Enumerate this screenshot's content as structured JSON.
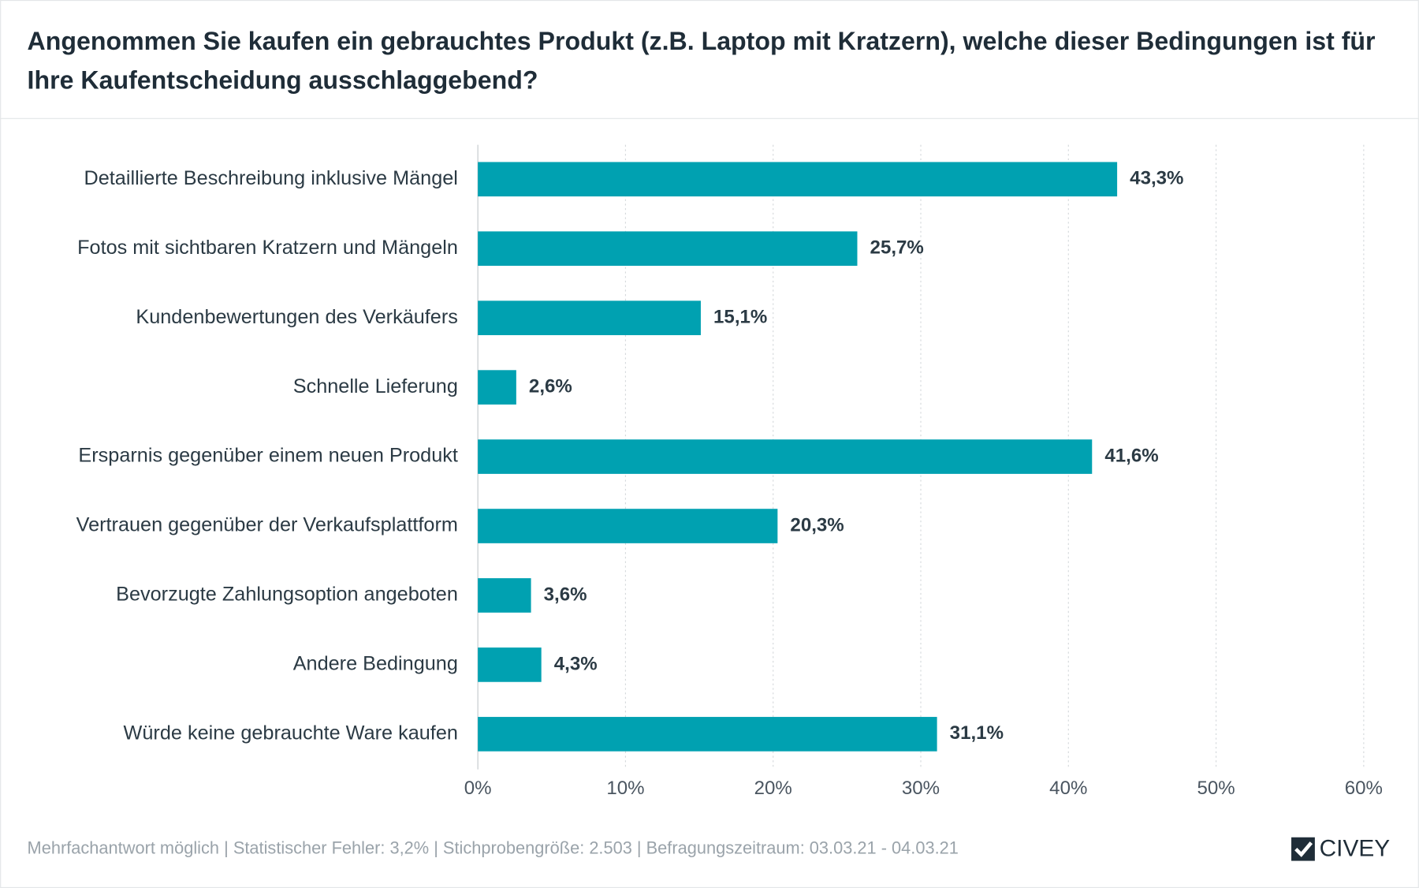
{
  "chart_data": {
    "type": "bar",
    "orientation": "horizontal",
    "title": "Angenommen Sie kaufen ein gebrauchtes Produkt (z.B. Laptop mit Kratzern), welche dieser Bedingungen ist für Ihre Kaufentscheidung ausschlaggebend?",
    "categories": [
      "Detaillierte Beschreibung inklusive Mängel",
      "Fotos mit sichtbaren Kratzern und Mängeln",
      "Kundenbewertungen des Verkäufers",
      "Schnelle Lieferung",
      "Ersparnis gegenüber einem neuen Produkt",
      "Vertrauen gegenüber der Verkaufsplattform",
      "Bevorzugte Zahlungsoption angeboten",
      "Andere Bedingung",
      "Würde keine gebrauchte Ware kaufen"
    ],
    "values": [
      43.3,
      25.7,
      15.1,
      2.6,
      41.6,
      20.3,
      3.6,
      4.3,
      31.1
    ],
    "value_labels": [
      "43,3%",
      "25,7%",
      "15,1%",
      "2,6%",
      "41,6%",
      "20,3%",
      "3,6%",
      "4,3%",
      "31,1%"
    ],
    "color": "#00a1b1",
    "xlim": [
      0,
      60
    ],
    "xticks": [
      {
        "value": 0,
        "label": "0%"
      },
      {
        "value": 10,
        "label": "10%"
      },
      {
        "value": 20,
        "label": "20%"
      },
      {
        "value": 30,
        "label": "30%"
      },
      {
        "value": 40,
        "label": "40%"
      },
      {
        "value": 50,
        "label": "50%"
      },
      {
        "value": 60,
        "label": "60%"
      }
    ],
    "grid": true,
    "footnote": "Mehrfachantwort möglich | Statistischer Fehler: 3,2% | Stichprobengröße: 2.503 | Befragungszeitraum: 03.03.21 - 04.03.21",
    "brand": "CIVEY"
  }
}
